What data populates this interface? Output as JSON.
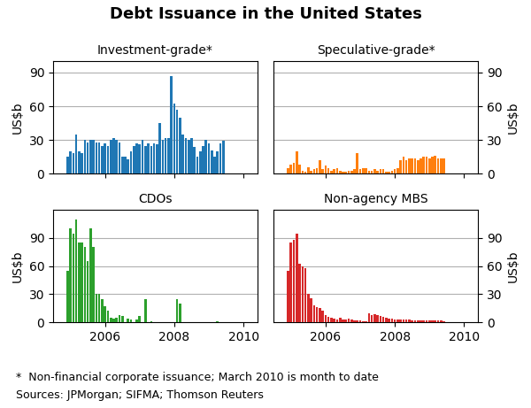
{
  "title": "Debt Issuance in the United States",
  "annotations": [
    "*  Non-financial corporate issuance; March 2010 is month to date",
    "Sources: JPMorgan; SIFMA; Thomson Reuters"
  ],
  "chart_data": [
    {
      "type": "bar",
      "title": "Investment-grade*",
      "y_label": "US$b",
      "x": [
        2004.917,
        2005.000333,
        2005.083667,
        2005.167,
        2005.250333,
        2005.333667,
        2005.417,
        2005.500333,
        2005.583667,
        2005.667,
        2005.750333,
        2005.833667,
        2005.917,
        2006.000333,
        2006.083667,
        2006.167,
        2006.250333,
        2006.333667,
        2006.417,
        2006.500333,
        2006.583667,
        2006.667,
        2006.750333,
        2006.833667,
        2006.917,
        2007.000333,
        2007.083667,
        2007.167,
        2007.250333,
        2007.333667,
        2007.417,
        2007.500333,
        2007.583667,
        2007.667,
        2007.750333,
        2007.833667,
        2007.917,
        2008.000333,
        2008.083667,
        2008.167,
        2008.250333,
        2008.333667,
        2008.417,
        2008.500333,
        2008.583667,
        2008.667,
        2008.750333,
        2008.833667,
        2008.917,
        2009.000333,
        2009.083667,
        2009.167,
        2009.250333,
        2009.333667,
        2009.417
      ],
      "values": [
        15,
        20,
        18,
        35,
        20,
        18,
        30,
        28,
        30,
        30,
        28,
        28,
        25,
        27,
        25,
        30,
        32,
        30,
        28,
        15,
        15,
        13,
        20,
        25,
        27,
        26,
        30,
        25,
        27,
        25,
        27,
        26,
        45,
        30,
        32,
        32,
        87,
        62,
        57,
        50,
        35,
        32,
        30,
        32,
        24,
        15,
        20,
        25,
        30,
        27,
        21,
        15,
        20,
        27,
        29
      ],
      "xlim": [
        2004.5,
        2010.4
      ],
      "xticks": [
        2006,
        2008,
        2010
      ],
      "ylim": [
        0,
        100
      ],
      "yticks": [
        0,
        30,
        60,
        90
      ],
      "grid": "y",
      "tick_labels": "y"
    },
    {
      "type": "bar",
      "title": "Speculative-grade*",
      "y_label": "US$b",
      "x": [
        2004.917,
        2005.000333,
        2005.083667,
        2005.167,
        2005.250333,
        2005.333667,
        2005.417,
        2005.500333,
        2005.583667,
        2005.667,
        2005.750333,
        2005.833667,
        2005.917,
        2006.000333,
        2006.083667,
        2006.167,
        2006.250333,
        2006.333667,
        2006.417,
        2006.500333,
        2006.583667,
        2006.667,
        2006.750333,
        2006.833667,
        2006.917,
        2007.000333,
        2007.083667,
        2007.167,
        2007.250333,
        2007.333667,
        2007.417,
        2007.500333,
        2007.583667,
        2007.667,
        2007.750333,
        2007.833667,
        2007.917,
        2008.000333,
        2008.083667,
        2008.167,
        2008.250333,
        2008.333667,
        2008.417,
        2008.500333,
        2008.583667,
        2008.667,
        2008.750333,
        2008.833667,
        2008.917,
        2009.000333,
        2009.083667,
        2009.167,
        2009.250333,
        2009.333667,
        2009.417
      ],
      "values": [
        5,
        8,
        10,
        20,
        8,
        3,
        2,
        6,
        3,
        4,
        5,
        12,
        4,
        7,
        5,
        3,
        4,
        5,
        3,
        2,
        2,
        3,
        3,
        4,
        18,
        4,
        5,
        5,
        3,
        3,
        4,
        3,
        4,
        4,
        2,
        2,
        3,
        4,
        5,
        12,
        15,
        12,
        14,
        14,
        14,
        12,
        14,
        15,
        15,
        14,
        15,
        16,
        14,
        14,
        14
      ],
      "xlim": [
        2004.5,
        2010.4
      ],
      "xticks": [
        2006,
        2008,
        2010
      ],
      "ylim": [
        0,
        100
      ],
      "yticks": [
        0,
        30,
        60,
        90
      ],
      "grid": "y",
      "tick_labels": "y"
    },
    {
      "type": "bar",
      "title": "CDOs",
      "y_label": "US$b",
      "x": [
        2004.917,
        2005.000333,
        2005.083667,
        2005.167,
        2005.250333,
        2005.333667,
        2005.417,
        2005.500333,
        2005.583667,
        2005.667,
        2005.750333,
        2005.833667,
        2005.917,
        2006.000333,
        2006.083667,
        2006.167,
        2006.250333,
        2006.333667,
        2006.417,
        2006.500333,
        2006.583667,
        2006.667,
        2006.750333,
        2006.833667,
        2006.917,
        2007.000333,
        2007.083667,
        2007.167,
        2007.250333,
        2007.333667,
        2007.417,
        2007.500333,
        2007.583667,
        2007.667,
        2007.750333,
        2007.833667,
        2007.917,
        2008.000333,
        2008.083667,
        2008.167,
        2008.250333,
        2008.333667,
        2008.417,
        2008.500333,
        2008.583667,
        2008.667,
        2008.750333,
        2008.833667,
        2008.917,
        2009.000333,
        2009.083667,
        2009.167,
        2009.250333,
        2009.333667,
        2009.417
      ],
      "values": [
        55,
        100,
        95,
        110,
        85,
        85,
        80,
        65,
        100,
        80,
        30,
        30,
        25,
        17,
        12,
        5,
        4,
        5,
        8,
        7,
        0,
        4,
        3,
        0,
        3,
        7,
        0,
        25,
        0,
        1,
        0,
        0,
        0,
        0,
        0,
        0,
        0,
        0,
        25,
        20,
        0,
        0,
        0,
        0,
        0,
        0,
        0,
        0,
        0,
        0,
        0,
        0,
        1,
        0,
        0
      ],
      "xlim": [
        2004.5,
        2010.4
      ],
      "xticks": [
        2006,
        2008,
        2010
      ],
      "ylim": [
        0,
        120
      ],
      "yticks": [
        0,
        30,
        60,
        90
      ],
      "grid": "y"
    },
    {
      "type": "bar",
      "title": "Non-agency MBS",
      "y_label": "US$b",
      "x": [
        2004.917,
        2005.000333,
        2005.083667,
        2005.167,
        2005.250333,
        2005.333667,
        2005.417,
        2005.500333,
        2005.583667,
        2005.667,
        2005.750333,
        2005.833667,
        2005.917,
        2006.000333,
        2006.083667,
        2006.167,
        2006.250333,
        2006.333667,
        2006.417,
        2006.500333,
        2006.583667,
        2006.667,
        2006.750333,
        2006.833667,
        2006.917,
        2007.000333,
        2007.083667,
        2007.167,
        2007.250333,
        2007.333667,
        2007.417,
        2007.500333,
        2007.583667,
        2007.667,
        2007.750333,
        2007.833667,
        2007.917,
        2008.000333,
        2008.083667,
        2008.167,
        2008.250333,
        2008.333667,
        2008.417,
        2008.500333,
        2008.583667,
        2008.667,
        2008.750333,
        2008.833667,
        2008.917,
        2009.000333,
        2009.083667,
        2009.167,
        2009.250333,
        2009.333667,
        2009.417
      ],
      "values": [
        55,
        85,
        88,
        95,
        62,
        60,
        58,
        30,
        26,
        18,
        16,
        15,
        12,
        8,
        6,
        5,
        4,
        3,
        5,
        3,
        3,
        4,
        3,
        2,
        2,
        2,
        1,
        1,
        10,
        8,
        9,
        8,
        7,
        6,
        5,
        4,
        4,
        3,
        3,
        3,
        3,
        3,
        3,
        2,
        2,
        2,
        2,
        2,
        2,
        2,
        2,
        2,
        2,
        2,
        1
      ],
      "xlim": [
        2004.5,
        2010.4
      ],
      "xticks": [
        2006,
        2008,
        2010
      ],
      "ylim": [
        0,
        120
      ],
      "yticks": [
        0,
        30,
        60,
        90
      ],
      "grid": "y"
    }
  ]
}
